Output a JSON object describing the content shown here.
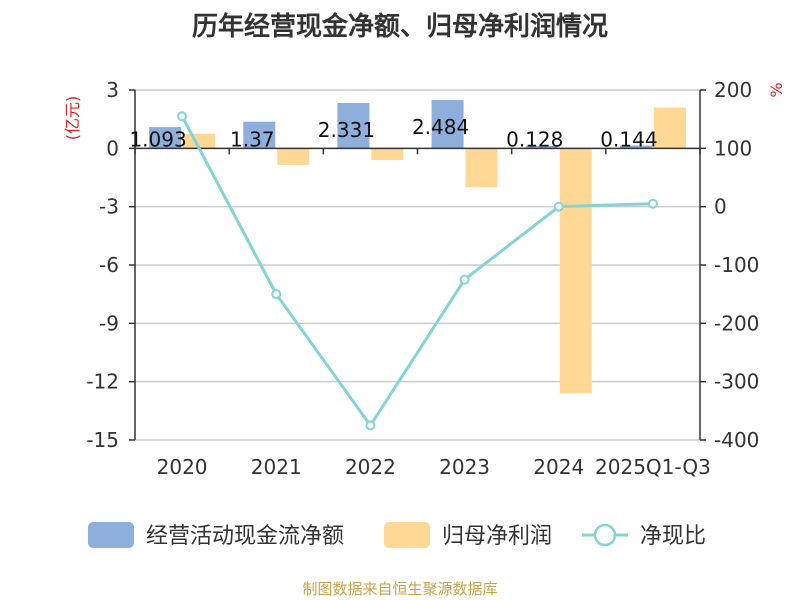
{
  "colors": {
    "cash_flow": "#8eaedc",
    "net_profit": "#fed894",
    "ratio": "#84d3d9",
    "source": "#c9a24a",
    "unit": "#e02020"
  },
  "chart_data": {
    "type": "bar+line",
    "title": "历年经营现金净额、归母净利润情况",
    "categories": [
      "2020",
      "2021",
      "2022",
      "2023",
      "2024",
      "2025Q1-Q3"
    ],
    "y_left": {
      "unit": "(亿元)",
      "ylim": [
        -15,
        3
      ],
      "ticks": [
        3,
        0,
        -3,
        -6,
        -9,
        -12,
        -15
      ]
    },
    "y_right": {
      "unit": "%",
      "ylim": [
        -400,
        200
      ],
      "ticks": [
        200,
        100,
        0,
        -100,
        -200,
        -300,
        -400
      ]
    },
    "series": [
      {
        "name": "经营活动现金流净额",
        "type": "bar",
        "axis": "left",
        "values": [
          1.093,
          1.37,
          2.331,
          2.484,
          0.128,
          0.144
        ],
        "labels": [
          "1.093",
          "1.37",
          "2.331",
          "2.484",
          "0.128",
          "0.144"
        ]
      },
      {
        "name": "归母净利润",
        "type": "bar",
        "axis": "left",
        "values": [
          0.75,
          -0.85,
          -0.6,
          -2.0,
          -12.6,
          2.1
        ]
      },
      {
        "name": "净现比",
        "type": "line",
        "axis": "right",
        "values": [
          155,
          -150,
          -375,
          -125,
          0,
          5
        ]
      }
    ],
    "legend": [
      "经营活动现金流净额",
      "归母净利润",
      "净现比"
    ]
  },
  "source": "制图数据来自恒生聚源数据库"
}
